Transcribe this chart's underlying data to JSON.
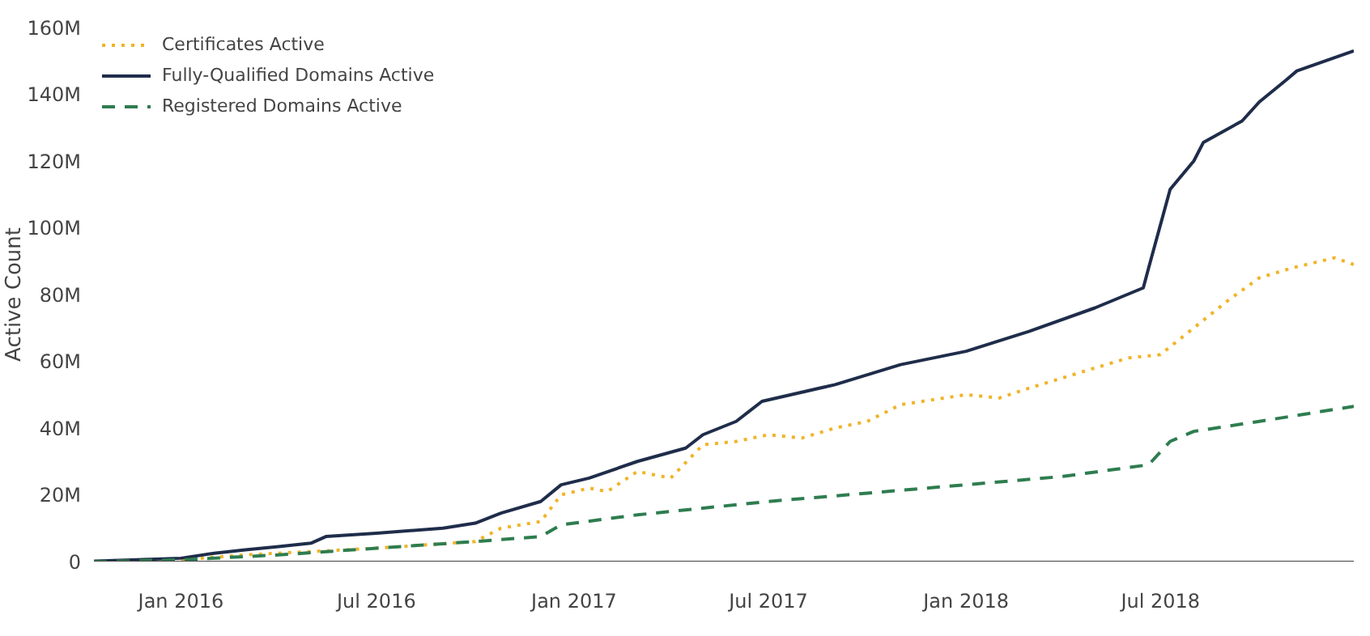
{
  "chart_data": {
    "type": "line",
    "ylabel": "Active Count",
    "legend": "top left",
    "marker": "none",
    "grid": false,
    "xlim": [
      "2015-10-12",
      "2018-12-28"
    ],
    "xticks": [
      {
        "value": "2016-01-01",
        "label": "Jan 2016"
      },
      {
        "value": "2016-07-01",
        "label": "Jul 2016"
      },
      {
        "value": "2017-01-01",
        "label": "Jan 2017"
      },
      {
        "value": "2017-07-01",
        "label": "Jul 2017"
      },
      {
        "value": "2018-01-01",
        "label": "Jan 2018"
      },
      {
        "value": "2018-07-01",
        "label": "Jul 2018"
      }
    ],
    "ylim": [
      0,
      160000000
    ],
    "yticks": [
      0,
      {
        "value": 20000000,
        "label": "20M"
      },
      {
        "value": 40000000,
        "label": "40M"
      },
      {
        "value": 60000000,
        "label": "60M"
      },
      {
        "value": 80000000,
        "label": "80M"
      },
      {
        "value": 100000000,
        "label": "100M"
      },
      {
        "value": 120000000,
        "label": "120M"
      },
      {
        "value": 140000000,
        "label": "140M"
      },
      {
        "value": 160000000,
        "label": "160M"
      }
    ],
    "series": [
      {
        "name": "Certificates Active",
        "color": "#f0b429",
        "line_style": "dotted",
        "x": [
          "2015-10-12",
          "2016-01-01",
          "2016-03-01",
          "2016-07-01",
          "2016-10-01",
          "2016-10-25",
          "2016-12-01",
          "2016-12-20",
          "2017-01-15",
          "2017-02-01",
          "2017-03-01",
          "2017-04-01",
          "2017-05-01",
          "2017-06-01",
          "2017-07-01",
          "2017-08-01",
          "2017-09-01",
          "2017-10-01",
          "2017-11-01",
          "2018-01-01",
          "2018-02-01",
          "2018-03-01",
          "2018-05-01",
          "2018-06-01",
          "2018-07-01",
          "2018-08-01",
          "2018-09-01",
          "2018-10-01",
          "2018-11-01",
          "2018-12-10",
          "2018-12-28"
        ],
        "values": [
          0,
          500000,
          2000000,
          4000000,
          6000000,
          10000000,
          12000000,
          20000000,
          22000000,
          21000000,
          27000000,
          25000000,
          35000000,
          36000000,
          38000000,
          37000000,
          40000000,
          42000000,
          47000000,
          50000000,
          49000000,
          52000000,
          58000000,
          61000000,
          62000000,
          70000000,
          78000000,
          85000000,
          88000000,
          91000000,
          89000000
        ]
      },
      {
        "name": "Fully-Qualified Domains Active",
        "color": "#1f2d4a",
        "line_style": "solid",
        "x": [
          "2015-10-12",
          "2016-01-01",
          "2016-02-01",
          "2016-03-01",
          "2016-04-01",
          "2016-05-01",
          "2016-05-15",
          "2016-07-01",
          "2016-09-01",
          "2016-10-01",
          "2016-10-25",
          "2016-12-01",
          "2016-12-20",
          "2017-01-15",
          "2017-03-01",
          "2017-04-15",
          "2017-05-01",
          "2017-06-01",
          "2017-06-25",
          "2017-09-01",
          "2017-11-01",
          "2018-01-01",
          "2018-03-01",
          "2018-05-01",
          "2018-06-15",
          "2018-06-20",
          "2018-07-10",
          "2018-08-01",
          "2018-08-10",
          "2018-09-15",
          "2018-10-01",
          "2018-10-25",
          "2018-11-05",
          "2018-12-28"
        ],
        "values": [
          100000,
          1000000,
          2500000,
          3500000,
          4500000,
          5500000,
          7500000,
          8500000,
          10000000,
          11500000,
          14500000,
          18000000,
          23000000,
          25000000,
          30000000,
          34000000,
          38000000,
          42000000,
          48000000,
          53000000,
          59000000,
          63000000,
          69000000,
          76000000,
          82000000,
          88000000,
          111500000,
          120000000,
          125600000,
          132000000,
          137700000,
          144000000,
          147000000,
          153000000
        ]
      },
      {
        "name": "Registered Domains Active",
        "color": "#2e7d4f",
        "line_style": "dashed",
        "x": [
          "2015-10-12",
          "2016-01-01",
          "2016-04-01",
          "2016-07-01",
          "2016-10-01",
          "2016-12-01",
          "2016-12-20",
          "2017-03-01",
          "2017-07-01",
          "2017-10-01",
          "2018-01-01",
          "2018-04-01",
          "2018-06-20",
          "2018-07-10",
          "2018-08-01",
          "2018-10-01",
          "2018-12-28"
        ],
        "values": [
          0,
          500000,
          2000000,
          4000000,
          6000000,
          7500000,
          11000000,
          14000000,
          18000000,
          20500000,
          23000000,
          25500000,
          29000000,
          36000000,
          39000000,
          42000000,
          46500000
        ]
      }
    ]
  }
}
